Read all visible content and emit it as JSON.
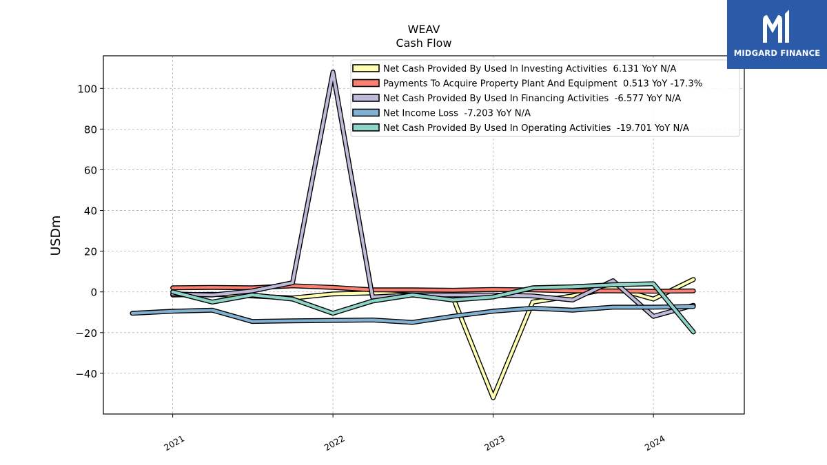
{
  "logo": {
    "text": "MIDGARD FINANCE",
    "background": "#2b5aa8",
    "icon": "midgard-logo-icon"
  },
  "chart_data": {
    "type": "line",
    "title": "WEAV",
    "subtitle": "Cash Flow",
    "xlabel": "",
    "ylabel": "USDm",
    "ylim": [
      -60,
      116
    ],
    "xlim": [
      "2020-07-27",
      "2024-07-26"
    ],
    "yticks": [
      -40,
      -20,
      0,
      20,
      40,
      60,
      80,
      100
    ],
    "xticks": [
      "2021-01-01",
      "2022-01-01",
      "2023-01-01",
      "2024-01-01"
    ],
    "xtick_labels": [
      "2021",
      "2022",
      "2023",
      "2024"
    ],
    "ytick_labels": [
      "−40",
      "−20",
      "0",
      "20",
      "40",
      "60",
      "80",
      "100"
    ],
    "grid": true,
    "legend_position": "top-right",
    "series": [
      {
        "name": "Net Cash Provided By Used In Investing Activities",
        "legend": "Net Cash Provided By Used In Investing Activities  6.131 YoY N/A",
        "color": "#ffffb3",
        "x": [
          "2021-01-01",
          "2021-04-01",
          "2021-07-01",
          "2021-10-01",
          "2022-01-01",
          "2022-04-01",
          "2022-07-01",
          "2022-10-01",
          "2023-01-01",
          "2023-04-01",
          "2023-07-01",
          "2023-10-01",
          "2024-01-01",
          "2024-04-01"
        ],
        "values": [
          -1.5,
          -1.2,
          -2.0,
          -3.0,
          -1.0,
          -0.5,
          -1.5,
          -2.5,
          -52,
          -5,
          -2,
          2,
          -3.5,
          6.1
        ]
      },
      {
        "name": "Payments To Acquire Property Plant And Equipment",
        "legend": "Payments To Acquire Property Plant And Equipment  0.513 YoY -17.3%",
        "color": "#fb8072",
        "x": [
          "2021-01-01",
          "2021-04-01",
          "2021-07-01",
          "2021-10-01",
          "2022-01-01",
          "2022-04-01",
          "2022-07-01",
          "2022-10-01",
          "2023-01-01",
          "2023-04-01",
          "2023-07-01",
          "2023-10-01",
          "2024-01-01",
          "2024-04-01"
        ],
        "values": [
          2.0,
          2.2,
          2.0,
          3.0,
          2.2,
          1.0,
          1.0,
          0.8,
          1.2,
          1.0,
          0.5,
          0.5,
          0.3,
          0.5
        ]
      },
      {
        "name": "Net Cash Provided By Used In Financing Activities",
        "legend": "Net Cash Provided By Used In Financing Activities  -6.577 YoY N/A",
        "color": "#bebada",
        "x": [
          "2021-01-01",
          "2021-04-01",
          "2021-07-01",
          "2021-10-01",
          "2022-01-01",
          "2022-04-01",
          "2022-07-01",
          "2022-10-01",
          "2023-01-01",
          "2023-04-01",
          "2023-07-01",
          "2023-10-01",
          "2024-01-01",
          "2024-04-01"
        ],
        "values": [
          -1.0,
          -1.5,
          0.5,
          4.5,
          108,
          -2.5,
          -1.5,
          -1.5,
          -1.5,
          -2.0,
          -4.0,
          5.5,
          -12,
          -6.6
        ]
      },
      {
        "name": "Net Income Loss",
        "legend": "Net Income Loss  -7.203 YoY N/A",
        "color": "#80b1d3",
        "x": [
          "2020-10-01",
          "2021-01-01",
          "2021-04-01",
          "2021-07-01",
          "2021-10-01",
          "2022-01-01",
          "2022-04-01",
          "2022-07-01",
          "2022-10-01",
          "2023-01-01",
          "2023-04-01",
          "2023-07-01",
          "2023-10-01",
          "2024-01-01",
          "2024-04-01"
        ],
        "values": [
          -10.5,
          -9.5,
          -9.0,
          -14.5,
          -14.2,
          -14.0,
          -13.8,
          -15.0,
          -12.0,
          -9.5,
          -8.0,
          -9.0,
          -7.5,
          -7.5,
          -7.2
        ]
      },
      {
        "name": "Net Cash Provided By Used In Operating Activities",
        "legend": "Net Cash Provided By Used In Operating Activities  -19.701 YoY N/A",
        "color": "#8dd3c7",
        "x": [
          "2021-01-01",
          "2021-04-01",
          "2021-07-01",
          "2021-10-01",
          "2022-01-01",
          "2022-04-01",
          "2022-07-01",
          "2022-10-01",
          "2023-01-01",
          "2023-04-01",
          "2023-07-01",
          "2023-10-01",
          "2024-01-01",
          "2024-04-01"
        ],
        "values": [
          0.0,
          -5.0,
          -1.5,
          -3.5,
          -10.5,
          -4.5,
          -1.5,
          -4.0,
          -2.5,
          2.0,
          2.5,
          3.5,
          4.0,
          -19.7
        ]
      }
    ]
  }
}
